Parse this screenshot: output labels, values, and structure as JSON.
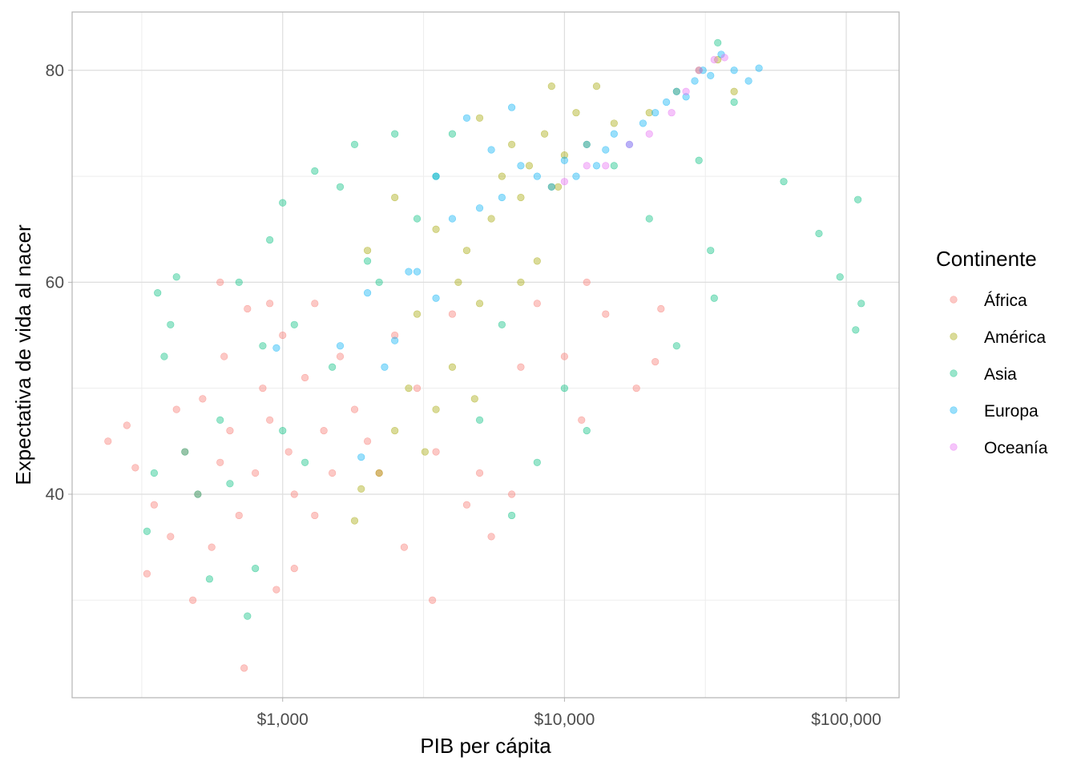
{
  "chart_data": {
    "type": "scatter",
    "title": "",
    "xlabel": "PIB per cápita",
    "ylabel": "Expectativa de vida al nacer",
    "x_scale": "log10",
    "xlim": [
      179,
      154000
    ],
    "ylim": [
      20.8,
      85.5
    ],
    "x_ticks": [
      1000,
      10000,
      100000
    ],
    "x_tick_labels": [
      "$1,000",
      "$10,000",
      "$100,000"
    ],
    "y_ticks": [
      40,
      60,
      80
    ],
    "y_tick_labels": [
      "40",
      "60",
      "80"
    ],
    "grid": true,
    "point_alpha": 0.4,
    "legend": {
      "title": "Continente",
      "placement": "right"
    },
    "series": [
      {
        "name": "África",
        "color": "#F8766D",
        "points": [
          [
            240,
            45
          ],
          [
            280,
            46.5
          ],
          [
            300,
            42.5
          ],
          [
            330,
            32.5
          ],
          [
            350,
            39
          ],
          [
            400,
            36
          ],
          [
            420,
            48
          ],
          [
            450,
            44
          ],
          [
            480,
            30
          ],
          [
            500,
            40
          ],
          [
            520,
            49
          ],
          [
            560,
            35
          ],
          [
            600,
            43
          ],
          [
            620,
            53
          ],
          [
            650,
            46
          ],
          [
            700,
            38
          ],
          [
            730,
            23.6
          ],
          [
            750,
            57.5
          ],
          [
            800,
            42
          ],
          [
            850,
            50
          ],
          [
            900,
            47
          ],
          [
            950,
            31
          ],
          [
            1000,
            55
          ],
          [
            1050,
            44
          ],
          [
            1100,
            40
          ],
          [
            1200,
            51
          ],
          [
            1300,
            58
          ],
          [
            1400,
            46
          ],
          [
            1500,
            42
          ],
          [
            1600,
            53
          ],
          [
            1800,
            48
          ],
          [
            2000,
            45
          ],
          [
            2200,
            42
          ],
          [
            2500,
            55
          ],
          [
            2700,
            35
          ],
          [
            3000,
            50
          ],
          [
            3400,
            30
          ],
          [
            3500,
            44
          ],
          [
            4000,
            57
          ],
          [
            4500,
            39
          ],
          [
            5000,
            42
          ],
          [
            5500,
            36
          ],
          [
            6500,
            40
          ],
          [
            7000,
            52
          ],
          [
            8000,
            58
          ],
          [
            10000,
            53
          ],
          [
            11500,
            47
          ],
          [
            12000,
            60
          ],
          [
            14000,
            57
          ],
          [
            18000,
            50
          ],
          [
            21000,
            52.5
          ],
          [
            22000,
            57.5
          ],
          [
            600,
            60
          ],
          [
            900,
            58
          ],
          [
            1100,
            33
          ],
          [
            1300,
            38
          ]
        ]
      },
      {
        "name": "América",
        "color": "#A3A500",
        "points": [
          [
            1800,
            37.5
          ],
          [
            1900,
            40.5
          ],
          [
            2200,
            42
          ],
          [
            2500,
            46
          ],
          [
            2800,
            50
          ],
          [
            3000,
            57
          ],
          [
            3200,
            44
          ],
          [
            3500,
            48
          ],
          [
            4000,
            52
          ],
          [
            4200,
            60
          ],
          [
            4500,
            63
          ],
          [
            5000,
            58
          ],
          [
            5500,
            66
          ],
          [
            6000,
            70
          ],
          [
            6500,
            73
          ],
          [
            7000,
            68
          ],
          [
            7500,
            71
          ],
          [
            8000,
            62
          ],
          [
            8500,
            74
          ],
          [
            9000,
            78.5
          ],
          [
            9500,
            69
          ],
          [
            10000,
            72
          ],
          [
            11000,
            76
          ],
          [
            12000,
            73
          ],
          [
            13000,
            78.5
          ],
          [
            15000,
            75
          ],
          [
            20000,
            76
          ],
          [
            25000,
            78
          ],
          [
            30000,
            80
          ],
          [
            35000,
            81
          ],
          [
            40000,
            78
          ],
          [
            2000,
            63
          ],
          [
            2500,
            68
          ],
          [
            3500,
            65
          ],
          [
            5000,
            75.5
          ],
          [
            7000,
            60
          ],
          [
            9000,
            69
          ],
          [
            4800,
            49
          ]
        ]
      },
      {
        "name": "Asia",
        "color": "#00BF7D",
        "points": [
          [
            330,
            36.5
          ],
          [
            350,
            42
          ],
          [
            360,
            59
          ],
          [
            380,
            53
          ],
          [
            400,
            56
          ],
          [
            420,
            60.5
          ],
          [
            450,
            44
          ],
          [
            500,
            40
          ],
          [
            550,
            32
          ],
          [
            600,
            47
          ],
          [
            650,
            41
          ],
          [
            700,
            60
          ],
          [
            750,
            28.5
          ],
          [
            800,
            33
          ],
          [
            850,
            54
          ],
          [
            900,
            64
          ],
          [
            1000,
            67.5
          ],
          [
            1000,
            46
          ],
          [
            1100,
            56
          ],
          [
            1200,
            43
          ],
          [
            1300,
            70.5
          ],
          [
            1500,
            52
          ],
          [
            1600,
            69
          ],
          [
            1800,
            73
          ],
          [
            2000,
            62
          ],
          [
            2200,
            60
          ],
          [
            2500,
            74
          ],
          [
            3000,
            66
          ],
          [
            3500,
            70
          ],
          [
            4000,
            74
          ],
          [
            5000,
            47
          ],
          [
            6000,
            56
          ],
          [
            6500,
            38
          ],
          [
            8000,
            43
          ],
          [
            10000,
            50
          ],
          [
            12000,
            46
          ],
          [
            15000,
            71
          ],
          [
            20000,
            66
          ],
          [
            25000,
            54
          ],
          [
            30000,
            71.5
          ],
          [
            33000,
            63
          ],
          [
            34000,
            58.5
          ],
          [
            35000,
            82.6
          ],
          [
            40000,
            77
          ],
          [
            60000,
            69.5
          ],
          [
            80000,
            64.6
          ],
          [
            95000,
            60.5
          ],
          [
            108000,
            55.5
          ],
          [
            110000,
            67.8
          ],
          [
            113000,
            58
          ]
        ]
      },
      {
        "name": "Europa",
        "color": "#00B0F6",
        "points": [
          [
            950,
            53.8
          ],
          [
            1900,
            43.5
          ],
          [
            2000,
            59
          ],
          [
            2300,
            52
          ],
          [
            2500,
            54.5
          ],
          [
            3000,
            61
          ],
          [
            3500,
            58.5
          ],
          [
            4000,
            66
          ],
          [
            4500,
            75.5
          ],
          [
            5000,
            67
          ],
          [
            5500,
            72.5
          ],
          [
            6000,
            68
          ],
          [
            7000,
            71
          ],
          [
            8000,
            70
          ],
          [
            9000,
            69
          ],
          [
            10000,
            71.5
          ],
          [
            11000,
            70
          ],
          [
            12000,
            73
          ],
          [
            13000,
            71
          ],
          [
            14000,
            72.5
          ],
          [
            15000,
            74
          ],
          [
            17000,
            73
          ],
          [
            19000,
            75
          ],
          [
            21000,
            76
          ],
          [
            23000,
            77
          ],
          [
            25000,
            78
          ],
          [
            27000,
            77.5
          ],
          [
            29000,
            79
          ],
          [
            31000,
            80
          ],
          [
            33000,
            79.5
          ],
          [
            36000,
            81.5
          ],
          [
            40000,
            80
          ],
          [
            45000,
            79
          ],
          [
            49000,
            80.2
          ],
          [
            6500,
            76.5
          ],
          [
            3500,
            70
          ],
          [
            2800,
            61
          ],
          [
            1600,
            54
          ]
        ]
      },
      {
        "name": "Oceanía",
        "color": "#E76BF3",
        "points": [
          [
            10000,
            69.5
          ],
          [
            12000,
            71
          ],
          [
            14000,
            71
          ],
          [
            17000,
            73
          ],
          [
            20000,
            74
          ],
          [
            24000,
            76
          ],
          [
            27000,
            78
          ],
          [
            30000,
            80
          ],
          [
            34000,
            81
          ],
          [
            37000,
            81.2
          ]
        ]
      }
    ]
  }
}
